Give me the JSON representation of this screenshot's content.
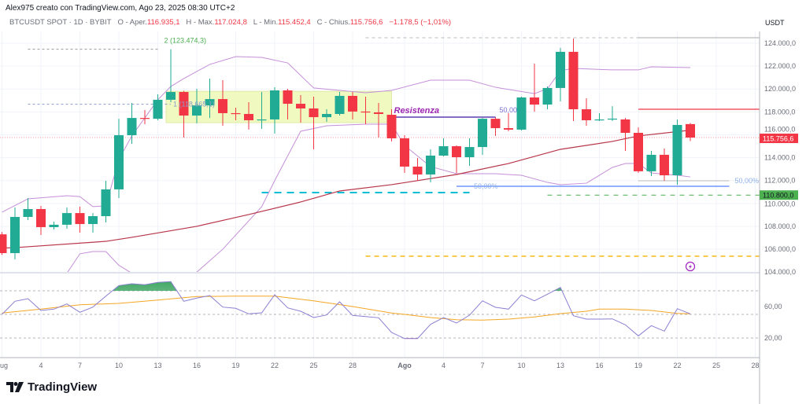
{
  "header": {
    "attribution": "Alex975 creato con TradingView.com, Ago 23, 2025 08:30 UTC+2",
    "symbol": "BTCUSDT SPOT · 1D · BYBIT",
    "open_label": "O - Aper.",
    "open_value": "116.935,1",
    "high_label": "H - Max.",
    "high_value": "117.024,8",
    "low_label": "L - Min.",
    "low_value": "115.452,4",
    "close_label": "C - Chius.",
    "close_value": "115.756,6",
    "change": "−1.178,5 (−1,01%)"
  },
  "footer": {
    "brand": "TradingView",
    "logo_icon": "tradingview-logo-icon"
  },
  "colors": {
    "up": "#22ab94",
    "down": "#f23645",
    "bands": "#c58fd8",
    "ma": "#b8364a",
    "rsi": "#8a7fd1",
    "rsi_ma": "#f5a623"
  },
  "chart_data": {
    "type": "candlestick",
    "price_axis": {
      "unit": "USDT",
      "range": [
        103200,
        125000
      ],
      "ticks": [
        {
          "value": 124000,
          "label": "124.000,0"
        },
        {
          "value": 122000,
          "label": "122.000,0"
        },
        {
          "value": 120000,
          "label": "120.000,0"
        },
        {
          "value": 118000,
          "label": "118.000,0"
        },
        {
          "value": 116000,
          "label": "116.000,0"
        },
        {
          "value": 114000,
          "label": "114.000,0"
        },
        {
          "value": 112000,
          "label": "112.000,0"
        },
        {
          "value": 110000,
          "label": "110.000,0"
        },
        {
          "value": 108000,
          "label": "108.000,0"
        },
        {
          "value": 106000,
          "label": "106.000,0"
        },
        {
          "value": 104000,
          "label": "104.000,0"
        }
      ],
      "current_price": {
        "value": 115756.6,
        "label": "115.756,6"
      },
      "marked_price": {
        "value": 110800,
        "label": "110.800,0"
      }
    },
    "time_axis": [
      {
        "date": "2025-07-01",
        "label": "Lug"
      },
      {
        "date": "2025-07-04",
        "label": "4"
      },
      {
        "date": "2025-07-07",
        "label": "7"
      },
      {
        "date": "2025-07-10",
        "label": "10"
      },
      {
        "date": "2025-07-13",
        "label": "13"
      },
      {
        "date": "2025-07-16",
        "label": "16"
      },
      {
        "date": "2025-07-19",
        "label": "19"
      },
      {
        "date": "2025-07-22",
        "label": "22"
      },
      {
        "date": "2025-07-25",
        "label": "25"
      },
      {
        "date": "2025-07-28",
        "label": "28"
      },
      {
        "date": "2025-08-01",
        "label": "Ago"
      },
      {
        "date": "2025-08-04",
        "label": "4"
      },
      {
        "date": "2025-08-07",
        "label": "7"
      },
      {
        "date": "2025-08-10",
        "label": "10"
      },
      {
        "date": "2025-08-13",
        "label": "13"
      },
      {
        "date": "2025-08-16",
        "label": "16"
      },
      {
        "date": "2025-08-19",
        "label": "19"
      },
      {
        "date": "2025-08-22",
        "label": "22"
      },
      {
        "date": "2025-08-25",
        "label": "25"
      },
      {
        "date": "2025-08-28",
        "label": "28"
      }
    ],
    "candles": [
      {
        "date": "2025-07-01",
        "o": 107300,
        "h": 107500,
        "l": 105500,
        "c": 105660
      },
      {
        "date": "2025-07-02",
        "o": 105660,
        "h": 109650,
        "l": 105110,
        "c": 108820
      },
      {
        "date": "2025-07-03",
        "o": 108820,
        "h": 110470,
        "l": 108550,
        "c": 109510
      },
      {
        "date": "2025-07-04",
        "o": 109510,
        "h": 109780,
        "l": 107240,
        "c": 107930
      },
      {
        "date": "2025-07-05",
        "o": 107930,
        "h": 108410,
        "l": 107720,
        "c": 108140
      },
      {
        "date": "2025-07-06",
        "o": 108140,
        "h": 109650,
        "l": 107790,
        "c": 109160
      },
      {
        "date": "2025-07-07",
        "o": 109160,
        "h": 109720,
        "l": 107450,
        "c": 108200
      },
      {
        "date": "2025-07-08",
        "o": 108200,
        "h": 109160,
        "l": 107450,
        "c": 108890
      },
      {
        "date": "2025-07-09",
        "o": 108890,
        "h": 111980,
        "l": 108340,
        "c": 111230
      },
      {
        "date": "2025-07-10",
        "o": 111230,
        "h": 117400,
        "l": 110470,
        "c": 115960
      },
      {
        "date": "2025-07-11",
        "o": 115960,
        "h": 118780,
        "l": 115210,
        "c": 117470
      },
      {
        "date": "2025-07-12",
        "o": 117470,
        "h": 118160,
        "l": 116930,
        "c": 117400
      },
      {
        "date": "2025-07-13",
        "o": 117400,
        "h": 119540,
        "l": 117270,
        "c": 119060
      },
      {
        "date": "2025-07-14",
        "o": 119060,
        "h": 123474,
        "l": 118850,
        "c": 119740
      },
      {
        "date": "2025-07-15",
        "o": 119740,
        "h": 119840,
        "l": 115760,
        "c": 117680
      },
      {
        "date": "2025-07-16",
        "o": 117680,
        "h": 120020,
        "l": 117000,
        "c": 118570
      },
      {
        "date": "2025-07-17",
        "o": 118570,
        "h": 120910,
        "l": 117470,
        "c": 119120
      },
      {
        "date": "2025-07-18",
        "o": 119120,
        "h": 120770,
        "l": 116790,
        "c": 117890
      },
      {
        "date": "2025-07-19",
        "o": 117890,
        "h": 118370,
        "l": 117270,
        "c": 117820
      },
      {
        "date": "2025-07-20",
        "o": 117820,
        "h": 118850,
        "l": 116450,
        "c": 117270
      },
      {
        "date": "2025-07-21",
        "o": 117270,
        "h": 119740,
        "l": 116510,
        "c": 117340
      },
      {
        "date": "2025-07-22",
        "o": 117340,
        "h": 120150,
        "l": 116100,
        "c": 119880
      },
      {
        "date": "2025-07-23",
        "o": 119880,
        "h": 120020,
        "l": 117340,
        "c": 118710
      },
      {
        "date": "2025-07-24",
        "o": 118710,
        "h": 119470,
        "l": 117060,
        "c": 118300
      },
      {
        "date": "2025-07-25",
        "o": 118300,
        "h": 119330,
        "l": 114730,
        "c": 117540
      },
      {
        "date": "2025-07-26",
        "o": 117540,
        "h": 118230,
        "l": 117130,
        "c": 117820
      },
      {
        "date": "2025-07-27",
        "o": 117820,
        "h": 119740,
        "l": 117680,
        "c": 119400
      },
      {
        "date": "2025-07-28",
        "o": 119400,
        "h": 119740,
        "l": 117340,
        "c": 118030
      },
      {
        "date": "2025-07-29",
        "o": 118030,
        "h": 119330,
        "l": 116930,
        "c": 117960
      },
      {
        "date": "2025-07-30",
        "o": 117960,
        "h": 118780,
        "l": 115760,
        "c": 117820
      },
      {
        "date": "2025-07-31",
        "o": 117750,
        "h": 118230,
        "l": 115420,
        "c": 115690
      },
      {
        "date": "2025-08-01",
        "o": 115690,
        "h": 115960,
        "l": 112670,
        "c": 113220
      },
      {
        "date": "2025-08-02",
        "o": 113220,
        "h": 113970,
        "l": 111980,
        "c": 112530
      },
      {
        "date": "2025-08-03",
        "o": 112530,
        "h": 114730,
        "l": 111840,
        "c": 114180
      },
      {
        "date": "2025-08-04",
        "o": 114180,
        "h": 115690,
        "l": 114110,
        "c": 115000
      },
      {
        "date": "2025-08-05",
        "o": 115000,
        "h": 115070,
        "l": 112670,
        "c": 114040
      },
      {
        "date": "2025-08-06",
        "o": 114040,
        "h": 115690,
        "l": 113290,
        "c": 114930
      },
      {
        "date": "2025-08-07",
        "o": 114930,
        "h": 117470,
        "l": 114250,
        "c": 117400
      },
      {
        "date": "2025-08-08",
        "o": 117400,
        "h": 117540,
        "l": 115900,
        "c": 116580
      },
      {
        "date": "2025-08-09",
        "o": 116580,
        "h": 117890,
        "l": 116310,
        "c": 116450
      },
      {
        "date": "2025-08-10",
        "o": 116450,
        "h": 119330,
        "l": 116380,
        "c": 119260
      },
      {
        "date": "2025-08-11",
        "o": 119260,
        "h": 122210,
        "l": 118020,
        "c": 118640
      },
      {
        "date": "2025-08-12",
        "o": 118640,
        "h": 120220,
        "l": 118230,
        "c": 120090
      },
      {
        "date": "2025-08-13",
        "o": 120090,
        "h": 123590,
        "l": 118920,
        "c": 123250
      },
      {
        "date": "2025-08-14",
        "o": 123250,
        "h": 124410,
        "l": 117200,
        "c": 118230
      },
      {
        "date": "2025-08-15",
        "o": 118230,
        "h": 119190,
        "l": 116790,
        "c": 117270
      },
      {
        "date": "2025-08-16",
        "o": 117270,
        "h": 117890,
        "l": 117200,
        "c": 117340
      },
      {
        "date": "2025-08-17",
        "o": 117340,
        "h": 118500,
        "l": 117200,
        "c": 117410
      },
      {
        "date": "2025-08-18",
        "o": 117340,
        "h": 117470,
        "l": 114590,
        "c": 116170
      },
      {
        "date": "2025-08-19",
        "o": 116170,
        "h": 116650,
        "l": 112670,
        "c": 112810
      },
      {
        "date": "2025-08-20",
        "o": 112810,
        "h": 114590,
        "l": 112390,
        "c": 114250
      },
      {
        "date": "2025-08-21",
        "o": 114250,
        "h": 114800,
        "l": 111980,
        "c": 112460
      },
      {
        "date": "2025-08-22",
        "o": 112460,
        "h": 117340,
        "l": 111640,
        "c": 116860
      },
      {
        "date": "2025-08-23",
        "o": 116935.1,
        "h": 117024.8,
        "l": 115452.4,
        "c": 115756.6
      }
    ],
    "bollinger_upper": [
      [
        "2025-07-01",
        109240
      ],
      [
        "2025-07-03",
        110400
      ],
      [
        "2025-07-06",
        110680
      ],
      [
        "2025-07-07",
        110600
      ],
      [
        "2025-07-08",
        109720
      ],
      [
        "2025-07-09",
        109790
      ],
      [
        "2025-07-10",
        113840
      ],
      [
        "2025-07-11",
        115900
      ],
      [
        "2025-07-13",
        119060
      ],
      [
        "2025-07-14",
        120220
      ],
      [
        "2025-07-15",
        120910
      ],
      [
        "2025-07-17",
        122150
      ],
      [
        "2025-07-19",
        122830
      ],
      [
        "2025-07-21",
        122760
      ],
      [
        "2025-07-23",
        122280
      ],
      [
        "2025-07-25",
        120090
      ],
      [
        "2025-07-27",
        119880
      ],
      [
        "2025-07-29",
        119670
      ],
      [
        "2025-07-31",
        119880
      ],
      [
        "2025-08-03",
        120770
      ],
      [
        "2025-08-06",
        120770
      ],
      [
        "2025-08-08",
        120150
      ],
      [
        "2025-08-11",
        119600
      ],
      [
        "2025-08-12",
        120020
      ],
      [
        "2025-08-13",
        121600
      ],
      [
        "2025-08-14",
        121800
      ],
      [
        "2025-08-17",
        121670
      ],
      [
        "2025-08-19",
        121670
      ],
      [
        "2025-08-20",
        121940
      ],
      [
        "2025-08-23",
        121870
      ]
    ],
    "bollinger_lower": [
      [
        "2025-07-06",
        103900
      ],
      [
        "2025-07-07",
        105600
      ],
      [
        "2025-07-08",
        105800
      ],
      [
        "2025-07-09",
        105800
      ],
      [
        "2025-07-10",
        104600
      ],
      [
        "2025-07-11",
        103900
      ],
      [
        "2025-07-12",
        103000
      ],
      [
        "2025-07-15",
        103000
      ],
      [
        "2025-07-16",
        104000
      ],
      [
        "2025-07-18",
        106000
      ],
      [
        "2025-07-21",
        109720
      ],
      [
        "2025-07-22",
        112000
      ],
      [
        "2025-07-24",
        116310
      ],
      [
        "2025-07-26",
        116790
      ],
      [
        "2025-07-29",
        116930
      ],
      [
        "2025-07-31",
        116930
      ],
      [
        "2025-08-01",
        115070
      ],
      [
        "2025-08-03",
        113220
      ],
      [
        "2025-08-05",
        112600
      ],
      [
        "2025-08-08",
        112600
      ],
      [
        "2025-08-10",
        112460
      ],
      [
        "2025-08-12",
        111840
      ],
      [
        "2025-08-13",
        111640
      ],
      [
        "2025-08-15",
        111770
      ],
      [
        "2025-08-17",
        113150
      ],
      [
        "2025-08-18",
        113490
      ],
      [
        "2025-08-19",
        113490
      ],
      [
        "2025-08-20",
        112670
      ],
      [
        "2025-08-22",
        112460
      ],
      [
        "2025-08-23",
        112320
      ]
    ],
    "moving_average": [
      [
        "2025-07-01",
        106100
      ],
      [
        "2025-07-02",
        106140
      ],
      [
        "2025-07-09",
        106690
      ],
      [
        "2025-07-11",
        107040
      ],
      [
        "2025-07-16",
        108000
      ],
      [
        "2025-07-20",
        109030
      ],
      [
        "2025-07-24",
        110130
      ],
      [
        "2025-07-27",
        111090
      ],
      [
        "2025-07-31",
        111640
      ],
      [
        "2025-08-05",
        112530
      ],
      [
        "2025-08-09",
        113490
      ],
      [
        "2025-08-13",
        114730
      ],
      [
        "2025-08-17",
        115420
      ],
      [
        "2025-08-19",
        115900
      ],
      [
        "2025-08-23",
        116400
      ]
    ],
    "annotations": {
      "fib_labels": [
        {
          "text": "2 (123.474,3)",
          "price": 123474.3,
          "from": "2025-07-03",
          "to": "2025-07-13",
          "color": "#4caf50"
        },
        {
          "text": "1 (118.665,1)",
          "price": 118665.1,
          "from": "2025-07-03",
          "to": "2025-07-14",
          "color": "#8a9cc9"
        }
      ],
      "range_box": {
        "from": "2025-07-14",
        "to": "2025-07-31",
        "top": 119800,
        "bottom": 117060,
        "color": "#f0f9c0"
      },
      "resistance": {
        "text": "Resistenza",
        "price": 117540,
        "from": "2025-07-31",
        "to": "2025-08-08",
        "color": "#9c27b0",
        "level_label": "50,00"
      },
      "top_level": {
        "price": 124480,
        "dashed_from": "2025-07-29",
        "solid_from": "2025-08-19"
      },
      "red_level": {
        "price": 118230,
        "from": "2025-08-19",
        "color": "#f23645"
      },
      "blue_level": {
        "price": 111500,
        "from": "2025-08-05",
        "to": "2025-08-26",
        "label": "50,00%",
        "color": "#2962ff"
      },
      "grey_level": {
        "price": 111980,
        "from": "2025-08-19",
        "to": "2025-08-26",
        "label": "50,00%"
      },
      "cyan_level": {
        "price": 110950,
        "from": "2025-07-21",
        "to": "2025-08-06",
        "color": "#00bcd4"
      },
      "green_level": {
        "price": 110800,
        "from": "2025-08-12",
        "color": "#4caf50"
      },
      "yellow_level": {
        "price": 105390,
        "from": "2025-07-29",
        "color": "#f5b400"
      },
      "alert_icon": "lightning-icon"
    },
    "oscillator": {
      "ticks": [
        {
          "value": 60,
          "label": "60,00"
        },
        {
          "value": 20,
          "label": "20,00"
        }
      ],
      "bands": [
        80,
        50,
        20
      ],
      "range": [
        5,
        103
      ],
      "line": [
        50,
        66.7,
        70,
        55,
        56.7,
        63.3,
        52.7,
        59.3,
        73.3,
        86.7,
        89,
        87.7,
        90.7,
        91.7,
        66.7,
        70.7,
        74,
        59.3,
        57.7,
        50.7,
        52,
        75,
        58.3,
        54,
        46,
        49.3,
        66,
        48.7,
        47.3,
        45.7,
        27,
        19.3,
        19.3,
        37.3,
        46,
        39,
        49,
        67.3,
        59,
        56.7,
        74.7,
        67.3,
        75.7,
        84.3,
        48.3,
        44,
        44,
        44.3,
        36.7,
        22.7,
        35.7,
        28.7,
        57.3,
        50.7
      ],
      "signal": [
        [
          "2025-07-01",
          51.7
        ],
        [
          "2025-07-04",
          56.7
        ],
        [
          "2025-07-07",
          62.3
        ],
        [
          "2025-07-10",
          64
        ],
        [
          "2025-07-13",
          68.3
        ],
        [
          "2025-07-16",
          72.7
        ],
        [
          "2025-07-19",
          73.3
        ],
        [
          "2025-07-22",
          73.3
        ],
        [
          "2025-07-25",
          67.3
        ],
        [
          "2025-07-28",
          60
        ],
        [
          "2025-07-31",
          51.7
        ],
        [
          "2025-08-01",
          50
        ],
        [
          "2025-08-03",
          46
        ],
        [
          "2025-08-05",
          43.3
        ],
        [
          "2025-08-07",
          42.7
        ],
        [
          "2025-08-09",
          44
        ],
        [
          "2025-08-11",
          46.7
        ],
        [
          "2025-08-13",
          51
        ],
        [
          "2025-08-15",
          54
        ],
        [
          "2025-08-16",
          56.7
        ],
        [
          "2025-08-18",
          56.7
        ],
        [
          "2025-08-20",
          55
        ],
        [
          "2025-08-22",
          51.3
        ],
        [
          "2025-08-23",
          50.7
        ]
      ]
    }
  }
}
